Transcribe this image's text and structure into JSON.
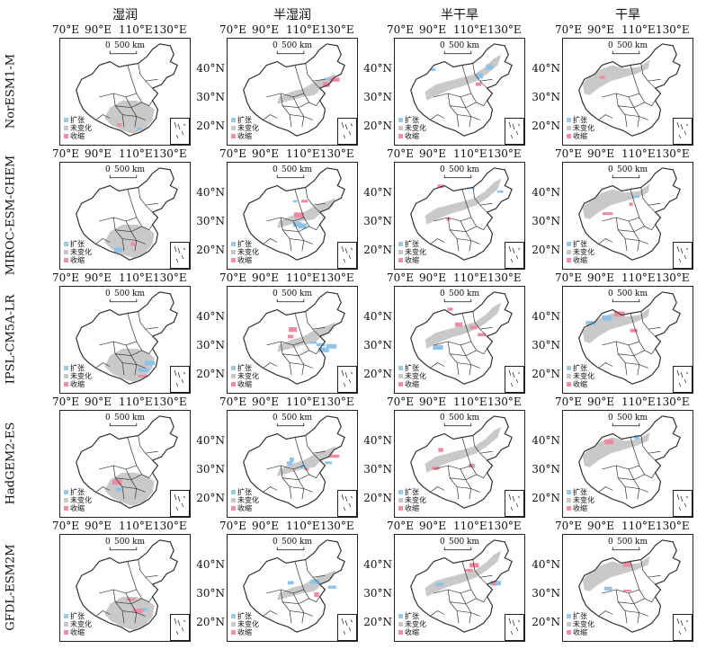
{
  "columns": [
    "湿润",
    "半湿润",
    "半干旱",
    "干旱"
  ],
  "models": [
    "NorESM1-M",
    "MIROC-ESM-CHEM",
    "IPSL-CM5A-LR",
    "HadGEM2-ES",
    "GFDL-ESM2M"
  ],
  "lon_ticks": [
    "70°E",
    "90°E",
    "110°E",
    "130°E"
  ],
  "lat_ticks": [
    "40°N",
    "30°N",
    "20°N"
  ],
  "scale_bar": "500 km",
  "scale_zero": "0",
  "legend": [
    {
      "label": "扩张",
      "color": "#9ecae1"
    },
    {
      "label": "未变化",
      "color": "#c8c8c8"
    },
    {
      "label": "收缩",
      "color": "#f08fa3"
    }
  ],
  "colors": {
    "expand": "#8ec2e6",
    "nochange": "#c6c6c6",
    "shrink": "#ef8aa0",
    "outline": "#333333"
  },
  "panels": [
    [
      {
        "zone": "humid",
        "n": 0.8,
        "e": 0.05,
        "s": 0.12
      },
      {
        "zone": "subhumid",
        "n": 0.6,
        "e": 0.1,
        "s": 0.2
      },
      {
        "zone": "semiarid",
        "n": 0.6,
        "e": 0.25,
        "s": 0.1
      },
      {
        "zone": "arid",
        "n": 0.85,
        "e": 0.03,
        "s": 0.05
      }
    ],
    [
      {
        "zone": "humid",
        "n": 0.75,
        "e": 0.1,
        "s": 0.12
      },
      {
        "zone": "subhumid",
        "n": 0.55,
        "e": 0.25,
        "s": 0.15
      },
      {
        "zone": "semiarid",
        "n": 0.6,
        "e": 0.2,
        "s": 0.15
      },
      {
        "zone": "arid",
        "n": 0.7,
        "e": 0.05,
        "s": 0.2
      }
    ],
    [
      {
        "zone": "humid",
        "n": 0.7,
        "e": 0.2,
        "s": 0.05
      },
      {
        "zone": "subhumid",
        "n": 0.5,
        "e": 0.3,
        "s": 0.15
      },
      {
        "zone": "semiarid",
        "n": 0.55,
        "e": 0.1,
        "s": 0.3
      },
      {
        "zone": "arid",
        "n": 0.6,
        "e": 0.15,
        "s": 0.2
      }
    ],
    [
      {
        "zone": "humid",
        "n": 0.8,
        "e": 0.05,
        "s": 0.1
      },
      {
        "zone": "subhumid",
        "n": 0.5,
        "e": 0.3,
        "s": 0.15
      },
      {
        "zone": "semiarid",
        "n": 0.6,
        "e": 0.1,
        "s": 0.25
      },
      {
        "zone": "arid",
        "n": 0.8,
        "e": 0.05,
        "s": 0.1
      }
    ],
    [
      {
        "zone": "humid",
        "n": 0.75,
        "e": 0.05,
        "s": 0.15
      },
      {
        "zone": "subhumid",
        "n": 0.55,
        "e": 0.25,
        "s": 0.1
      },
      {
        "zone": "semiarid",
        "n": 0.55,
        "e": 0.15,
        "s": 0.25
      },
      {
        "zone": "arid",
        "n": 0.75,
        "e": 0.05,
        "s": 0.15
      }
    ]
  ]
}
